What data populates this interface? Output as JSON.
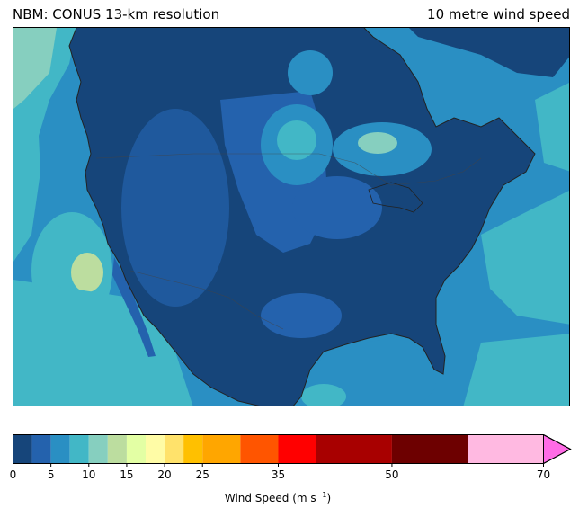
{
  "title_left": "NBM: CONUS 13-km resolution",
  "title_right": "10 metre wind speed",
  "colorbar": {
    "label_text": "Wind Speed (m s",
    "label_exponent": "−1",
    "label_close": ")",
    "extend": "max",
    "boundaries": [
      0,
      2.5,
      5,
      7.5,
      10,
      12.5,
      15,
      17.5,
      20,
      22.5,
      25,
      30,
      35,
      40,
      50,
      60,
      70
    ],
    "colors": [
      "#16457a",
      "#2462ad",
      "#2a8fc3",
      "#42b7c6",
      "#86cfbf",
      "#bcdd9f",
      "#e3ffa4",
      "#fffca6",
      "#ffe26b",
      "#ffc000",
      "#ffa600",
      "#ff5500",
      "#ff0000",
      "#a80000",
      "#6d0000",
      "#ffb9e1"
    ],
    "over_color": "#ff6be6",
    "ticks": [
      "0",
      "5",
      "10",
      "15",
      "20",
      "25",
      "35",
      "50",
      "70"
    ]
  },
  "map": {
    "region": "North America (CONUS domain)",
    "ocean_colors": [
      "#2a8fc3",
      "#42b7c6",
      "#86cfbf",
      "#bcdd9f"
    ],
    "land_colors": [
      "#16457a",
      "#2462ad",
      "#2a8fc3",
      "#42b7c6",
      "#86cfbf"
    ]
  }
}
